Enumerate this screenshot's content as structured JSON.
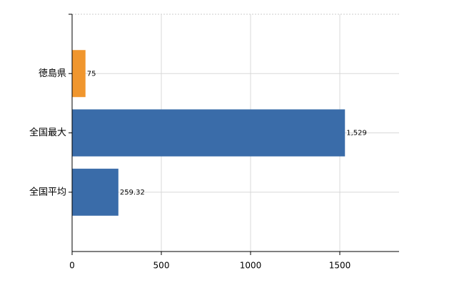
{
  "chart_data": {
    "type": "hbar",
    "categories": [
      "徳島県",
      "全国最大",
      "全国平均"
    ],
    "values": [
      75,
      1529,
      259.32
    ],
    "value_labels": [
      "75",
      "1,529",
      "259.32"
    ],
    "colors": [
      "#f0962e",
      "#3a6ca9",
      "#3a6ca9"
    ],
    "xlim": [
      0,
      1832
    ],
    "xticks": [
      0,
      500,
      1000,
      1500
    ],
    "grid": true
  }
}
